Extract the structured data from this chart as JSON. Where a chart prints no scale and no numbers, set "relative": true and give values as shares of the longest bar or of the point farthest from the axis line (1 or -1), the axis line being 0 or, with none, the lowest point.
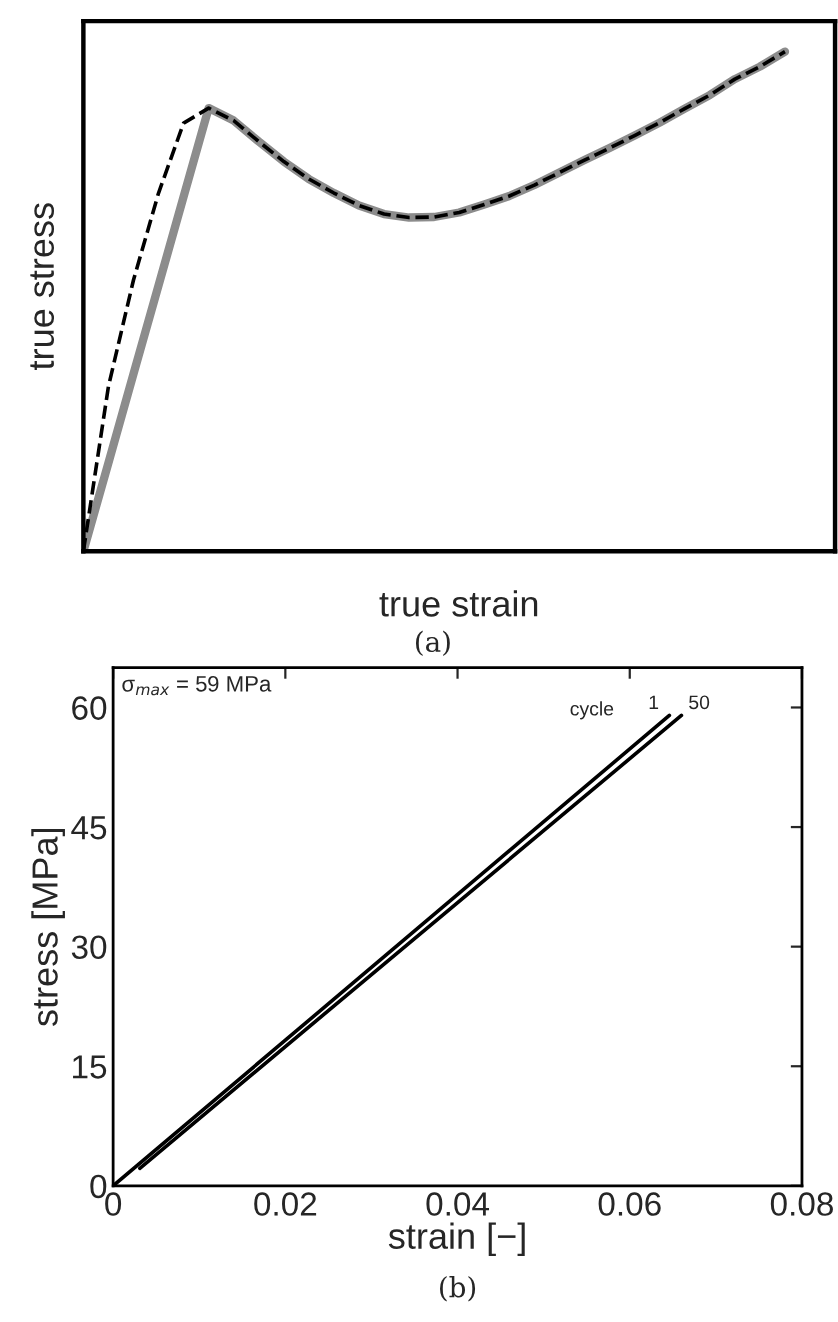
{
  "chart_data": [
    {
      "type": "line",
      "relative": true,
      "xlabel": "true strain",
      "ylabel": "true stress",
      "tick_labels": false,
      "grid": false,
      "categories": [
        null,
        null,
        null,
        null,
        null,
        null,
        null,
        null,
        null,
        null,
        null,
        null,
        null,
        null,
        null,
        null,
        null,
        null,
        null,
        null,
        null,
        null,
        null,
        null,
        null,
        null,
        null,
        null,
        null,
        null,
        null
      ],
      "series": [
        {
          "color": "#8c8c8c",
          "line_style": "solid",
          "values": [
            0,
            0.177,
            0.355,
            0.532,
            0.71,
            0.887,
            0.862,
            0.82,
            0.78,
            0.745,
            0.717,
            0.692,
            0.675,
            0.668,
            0.669,
            0.678,
            0.694,
            0.711,
            0.733,
            0.758,
            0.783,
            0.807,
            0.832,
            0.858,
            0.886,
            0.913,
            0.945,
            0.97,
            1.0,
            null,
            null
          ]
        },
        {
          "color": "#000000",
          "line_style": "dashed",
          "values": [
            0,
            0.33,
            0.543,
            0.717,
            0.857,
            0.887,
            0.862,
            0.82,
            0.78,
            0.745,
            0.717,
            0.692,
            0.675,
            0.668,
            0.669,
            0.678,
            0.694,
            0.711,
            0.733,
            0.758,
            0.783,
            0.807,
            0.832,
            0.858,
            0.886,
            0.913,
            0.945,
            0.97,
            1.0,
            null,
            null
          ]
        }
      ],
      "annotations": [
        "(a)"
      ]
    },
    {
      "type": "line",
      "xlabel": "strain [−]",
      "ylabel": "stress [MPa]",
      "grid": false,
      "xlim": [
        0,
        0.08
      ],
      "ylim": [
        0,
        65
      ],
      "xticks": [
        0,
        0.02,
        0.04,
        0.06,
        0.08
      ],
      "yticks": [
        0,
        15,
        30,
        45,
        60
      ],
      "series": [
        {
          "name": "1",
          "color": "#000000",
          "x": [
            0,
            0.0646
          ],
          "values": [
            0,
            59
          ]
        },
        {
          "name": "50",
          "color": "#000000",
          "x": [
            0.0031,
            0.066
          ],
          "values": [
            2.2,
            59
          ]
        }
      ],
      "annotations": [
        "σ$_{max}$ = 59 MPa",
        "cycle",
        "(b)"
      ]
    }
  ]
}
